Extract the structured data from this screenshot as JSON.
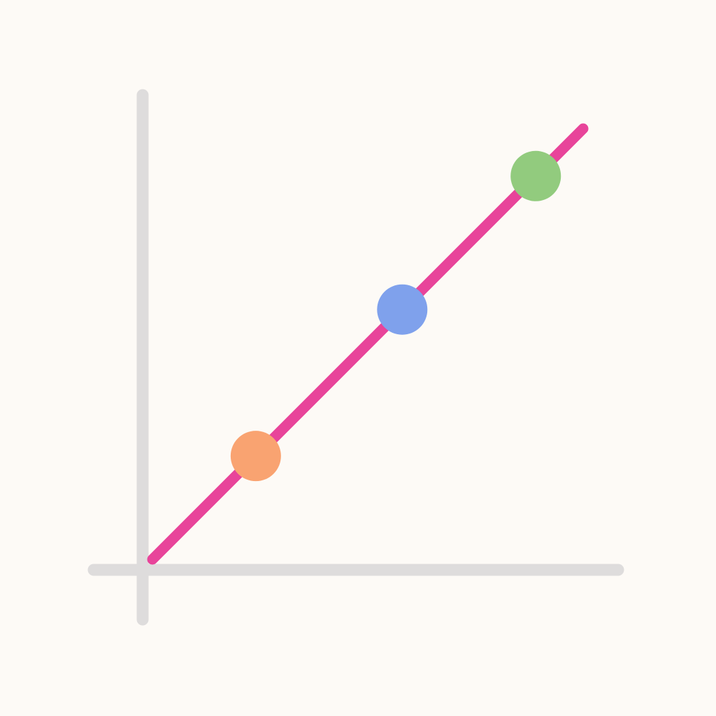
{
  "chart_data": {
    "type": "line",
    "xlim": [
      0,
      10
    ],
    "ylim": [
      0,
      10
    ],
    "grid": false,
    "series": [
      {
        "x": [
          0,
          10
        ],
        "y": [
          0,
          10
        ],
        "color": "#e8449a"
      }
    ],
    "points": [
      {
        "x": 2.4,
        "y": 2.4,
        "color": "#f9a371"
      },
      {
        "x": 5.8,
        "y": 5.8,
        "color": "#7fa1ec"
      },
      {
        "x": 8.9,
        "y": 8.9,
        "color": "#92cb7e"
      }
    ]
  },
  "colors": {
    "background": "#fdfaf6",
    "axis": "#dedcdc"
  }
}
